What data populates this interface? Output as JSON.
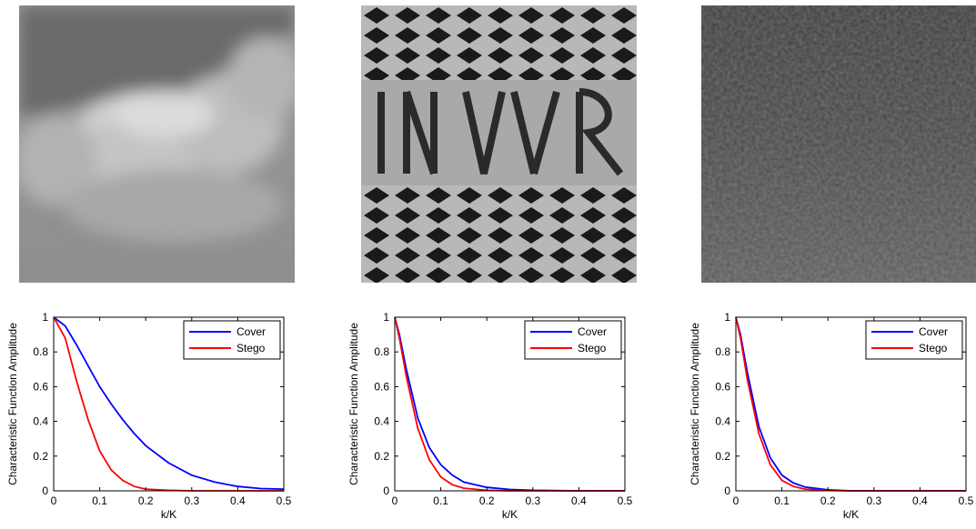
{
  "images": [
    {
      "subject": "clouds",
      "colors": {
        "sky": "#6a6a6a",
        "cloud": "#bdbdbd",
        "cloud_light": "#d9d9d9"
      }
    },
    {
      "subject": "textured metal plate with engraved letters",
      "colors": {
        "metal": "#b8b8b8",
        "dark": "#1a1a1a"
      }
    },
    {
      "subject": "dense foliage",
      "colors": {
        "top": "#3d3d3d",
        "bottom": "#5a5a5a"
      }
    }
  ],
  "colors": {
    "cover": "#0000ff",
    "stego": "#ff0000",
    "axis": "#000000"
  },
  "chart_data": [
    {
      "type": "line",
      "xlabel": "k/K",
      "ylabel": "Characteristic Function Amplitude",
      "xlim": [
        0,
        0.5
      ],
      "ylim": [
        0,
        1
      ],
      "xticks": [
        "0",
        "0.1",
        "0.2",
        "0.3",
        "0.4",
        "0.5"
      ],
      "yticks": [
        "0",
        "0.2",
        "0.4",
        "0.6",
        "0.8",
        "1"
      ],
      "legend_position": "top-right",
      "x": [
        0,
        0.025,
        0.05,
        0.075,
        0.1,
        0.125,
        0.15,
        0.175,
        0.2,
        0.25,
        0.3,
        0.35,
        0.4,
        0.45,
        0.5
      ],
      "series": [
        {
          "name": "Cover",
          "color": "#0000ff",
          "values": [
            1.0,
            0.95,
            0.84,
            0.72,
            0.6,
            0.5,
            0.41,
            0.33,
            0.26,
            0.16,
            0.09,
            0.05,
            0.025,
            0.013,
            0.01
          ]
        },
        {
          "name": "Stego",
          "color": "#ff0000",
          "values": [
            1.0,
            0.88,
            0.63,
            0.41,
            0.23,
            0.12,
            0.06,
            0.025,
            0.01,
            0.003,
            0.0,
            0.0,
            0.0,
            0.0,
            0.0
          ]
        }
      ]
    },
    {
      "type": "line",
      "xlabel": "k/K",
      "ylabel": "Characteristic Function Amplitude",
      "xlim": [
        0,
        0.5
      ],
      "ylim": [
        0,
        1
      ],
      "xticks": [
        "0",
        "0.1",
        "0.2",
        "0.3",
        "0.4",
        "0.5"
      ],
      "yticks": [
        "0",
        "0.2",
        "0.4",
        "0.6",
        "0.8",
        "1"
      ],
      "legend_position": "top-right",
      "x": [
        0,
        0.01,
        0.025,
        0.05,
        0.075,
        0.1,
        0.125,
        0.15,
        0.2,
        0.25,
        0.3,
        0.4,
        0.5
      ],
      "series": [
        {
          "name": "Cover",
          "color": "#0000ff",
          "values": [
            1.0,
            0.9,
            0.7,
            0.42,
            0.25,
            0.15,
            0.09,
            0.05,
            0.02,
            0.008,
            0.003,
            0.0,
            0.0
          ]
        },
        {
          "name": "Stego",
          "color": "#ff0000",
          "values": [
            1.0,
            0.88,
            0.66,
            0.36,
            0.18,
            0.08,
            0.035,
            0.015,
            0.003,
            0.0,
            0.0,
            0.0,
            0.0
          ]
        }
      ]
    },
    {
      "type": "line",
      "xlabel": "k/K",
      "ylabel": "Characteristic Function Amplitude",
      "xlim": [
        0,
        0.5
      ],
      "ylim": [
        0,
        1
      ],
      "xticks": [
        "0",
        "0.1",
        "0.2",
        "0.3",
        "0.4",
        "0.5"
      ],
      "yticks": [
        "0",
        "0.2",
        "0.4",
        "0.6",
        "0.8",
        "1"
      ],
      "legend_position": "top-right",
      "x": [
        0,
        0.01,
        0.025,
        0.05,
        0.075,
        0.1,
        0.125,
        0.15,
        0.2,
        0.25,
        0.3,
        0.4,
        0.5
      ],
      "series": [
        {
          "name": "Cover",
          "color": "#0000ff",
          "values": [
            1.0,
            0.9,
            0.68,
            0.37,
            0.19,
            0.09,
            0.045,
            0.022,
            0.006,
            0.0,
            0.0,
            0.0,
            0.0
          ]
        },
        {
          "name": "Stego",
          "color": "#ff0000",
          "values": [
            1.0,
            0.88,
            0.64,
            0.33,
            0.15,
            0.06,
            0.025,
            0.01,
            0.002,
            0.0,
            0.0,
            0.0,
            0.0
          ]
        }
      ]
    }
  ]
}
